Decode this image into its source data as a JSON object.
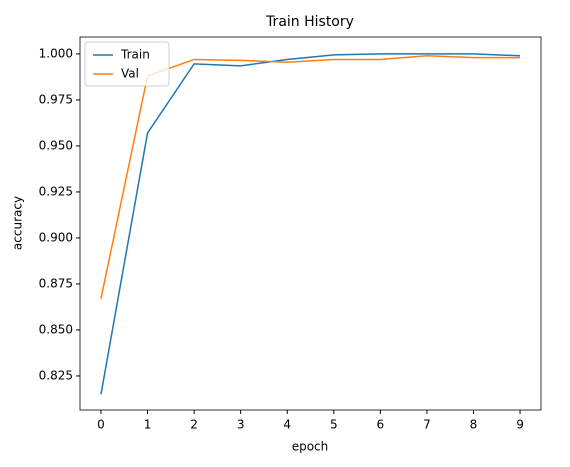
{
  "chart_data": {
    "type": "line",
    "title": "Train History",
    "x_label": "epoch",
    "y_label": "accuracy",
    "x": [
      0,
      1,
      2,
      3,
      4,
      5,
      6,
      7,
      8,
      9
    ],
    "series": [
      {
        "name": "Train",
        "color": "#1f77b4",
        "values": [
          0.815,
          0.957,
          0.9946,
          0.9935,
          0.997,
          0.9995,
          1.0,
          1.0,
          1.0,
          0.999
        ]
      },
      {
        "name": "Val",
        "color": "#ff7f0e",
        "values": [
          0.867,
          0.988,
          0.997,
          0.9965,
          0.9955,
          0.997,
          0.997,
          0.999,
          0.998,
          0.998
        ]
      }
    ],
    "xlim": [
      -0.45,
      9.45
    ],
    "xticks": [
      0,
      1,
      2,
      3,
      4,
      5,
      6,
      7,
      8,
      9
    ],
    "ylim": [
      0.8065,
      1.0092
    ],
    "yticks": [
      0.825,
      {
        "value": 0.85,
        "label": "0.850"
      },
      0.875,
      {
        "value": 0.9,
        "label": "0.900"
      },
      0.925,
      {
        "value": 0.95,
        "label": "0.950"
      },
      0.975,
      {
        "value": 1.0,
        "label": "1.000"
      }
    ],
    "legend": "upper left"
  }
}
